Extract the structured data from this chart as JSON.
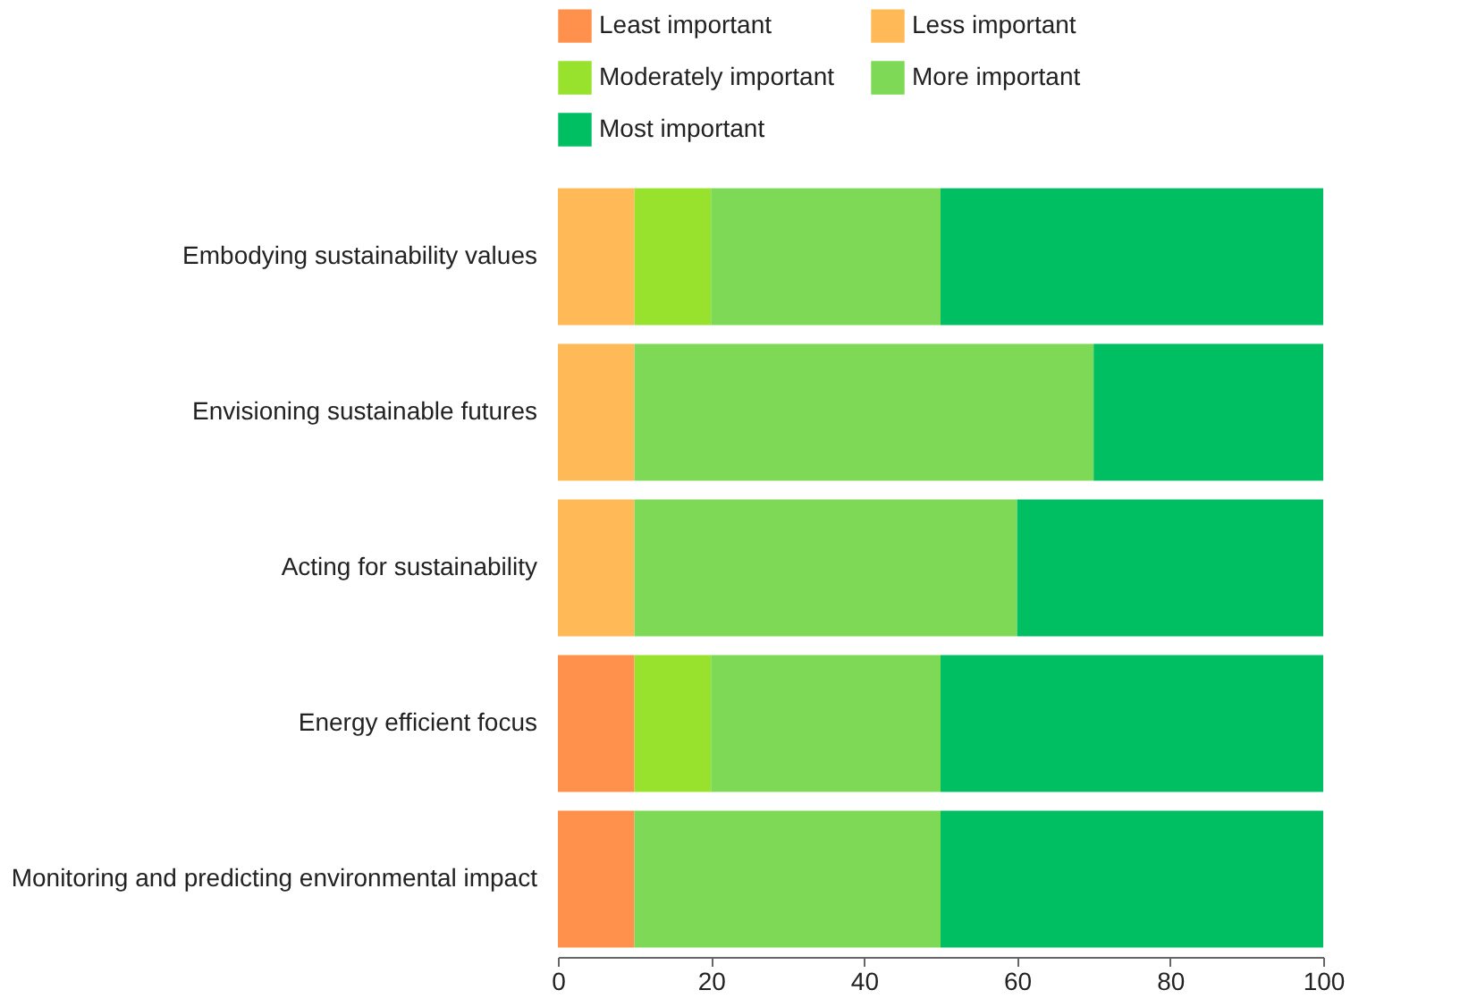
{
  "chart_data": {
    "type": "bar",
    "orientation": "horizontal",
    "stacked": true,
    "categories": [
      "Embodying sustainability values",
      "Envisioning sustainable futures",
      "Acting for sustainability",
      "Energy efficient focus",
      "Monitoring and predicting environmental impact"
    ],
    "series": [
      {
        "name": "Least important",
        "color": "#ff914d",
        "values": [
          0,
          0,
          0,
          10,
          10
        ]
      },
      {
        "name": "Less important",
        "color": "#ffb957",
        "values": [
          10,
          10,
          10,
          0,
          0
        ]
      },
      {
        "name": "Moderately important",
        "color": "#98e22e",
        "values": [
          10,
          0,
          0,
          10,
          0
        ]
      },
      {
        "name": "More important",
        "color": "#7ed957",
        "values": [
          30,
          60,
          50,
          30,
          40
        ]
      },
      {
        "name": "Most important",
        "color": "#00bf63",
        "values": [
          50,
          30,
          40,
          50,
          50
        ]
      }
    ],
    "xlim": [
      0,
      100
    ],
    "xticks": [
      0,
      20,
      40,
      60,
      80,
      100
    ],
    "grid": false,
    "legend": "top"
  }
}
